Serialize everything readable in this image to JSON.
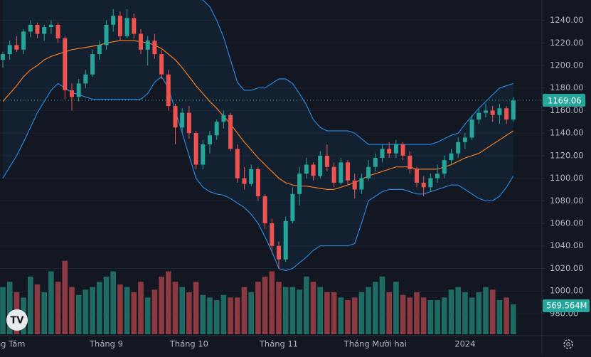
{
  "chart_data": {
    "type": "candlestick",
    "up_color": "#26a69a",
    "down_color": "#ef5350",
    "volume_up_color": "#1e6b63",
    "volume_down_color": "#8c3a42",
    "band_color": "#2a84d8",
    "middle_color": "#f57c20",
    "ylim": [
      965,
      1258
    ],
    "yticks": [
      {
        "value": 980,
        "label": "980.00"
      },
      {
        "value": 1000,
        "label": "1000.00"
      },
      {
        "value": 1020,
        "label": "1020.00"
      },
      {
        "value": 1040,
        "label": "1040.00"
      },
      {
        "value": 1060,
        "label": "1060.00"
      },
      {
        "value": 1080,
        "label": "1080.00"
      },
      {
        "value": 1100,
        "label": "1100.00"
      },
      {
        "value": 1120,
        "label": "1120.00"
      },
      {
        "value": 1140,
        "label": "1140.00"
      },
      {
        "value": 1160,
        "label": "1160.00"
      },
      {
        "value": 1180,
        "label": "1180.00"
      },
      {
        "value": 1200,
        "label": "1200.00"
      },
      {
        "value": 1220,
        "label": "1220.00"
      },
      {
        "value": 1240,
        "label": "1240.00"
      }
    ],
    "xlabels": [
      {
        "index": 0,
        "label": "Tháng Tám"
      },
      {
        "index": 15,
        "label": "Tháng 9"
      },
      {
        "index": 27,
        "label": "Tháng 10"
      },
      {
        "index": 40,
        "label": "Tháng 11"
      },
      {
        "index": 54,
        "label": "Tháng Mười hai"
      },
      {
        "index": 67,
        "label": "2024"
      }
    ],
    "last_price": 1169.06,
    "last_volume": {
      "value": 569.564,
      "label": "569.564M"
    },
    "vlim": [
      0,
      1600
    ],
    "candles": [
      [
        1205,
        1212,
        1198,
        1210
      ],
      [
        1210,
        1222,
        1205,
        1218
      ],
      [
        1218,
        1226,
        1212,
        1214
      ],
      [
        1214,
        1232,
        1210,
        1230
      ],
      [
        1230,
        1240,
        1225,
        1236
      ],
      [
        1236,
        1238,
        1224,
        1228
      ],
      [
        1228,
        1236,
        1222,
        1234
      ],
      [
        1234,
        1240,
        1228,
        1236
      ],
      [
        1236,
        1238,
        1220,
        1224
      ],
      [
        1224,
        1226,
        1170,
        1178
      ],
      [
        1178,
        1184,
        1160,
        1172
      ],
      [
        1172,
        1188,
        1168,
        1184
      ],
      [
        1184,
        1196,
        1180,
        1192
      ],
      [
        1192,
        1214,
        1190,
        1210
      ],
      [
        1210,
        1222,
        1205,
        1218
      ],
      [
        1218,
        1240,
        1214,
        1236
      ],
      [
        1236,
        1250,
        1230,
        1244
      ],
      [
        1244,
        1248,
        1222,
        1226
      ],
      [
        1226,
        1250,
        1224,
        1242
      ],
      [
        1242,
        1246,
        1224,
        1228
      ],
      [
        1228,
        1232,
        1210,
        1214
      ],
      [
        1214,
        1226,
        1200,
        1222
      ],
      [
        1222,
        1228,
        1206,
        1210
      ],
      [
        1210,
        1214,
        1188,
        1192
      ],
      [
        1192,
        1196,
        1160,
        1164
      ],
      [
        1164,
        1166,
        1130,
        1145
      ],
      [
        1145,
        1162,
        1140,
        1158
      ],
      [
        1158,
        1164,
        1135,
        1140
      ],
      [
        1140,
        1142,
        1108,
        1112
      ],
      [
        1112,
        1134,
        1108,
        1130
      ],
      [
        1130,
        1142,
        1122,
        1138
      ],
      [
        1138,
        1152,
        1134,
        1150
      ],
      [
        1150,
        1160,
        1144,
        1156
      ],
      [
        1156,
        1158,
        1124,
        1126
      ],
      [
        1126,
        1130,
        1096,
        1100
      ],
      [
        1100,
        1110,
        1090,
        1095
      ],
      [
        1095,
        1112,
        1093,
        1108
      ],
      [
        1108,
        1110,
        1080,
        1084
      ],
      [
        1084,
        1086,
        1055,
        1060
      ],
      [
        1060,
        1064,
        1034,
        1040
      ],
      [
        1040,
        1044,
        1020,
        1028
      ],
      [
        1028,
        1066,
        1026,
        1062
      ],
      [
        1062,
        1092,
        1060,
        1086
      ],
      [
        1086,
        1110,
        1076,
        1104
      ],
      [
        1104,
        1118,
        1100,
        1112
      ],
      [
        1112,
        1114,
        1098,
        1102
      ],
      [
        1102,
        1124,
        1100,
        1120
      ],
      [
        1120,
        1130,
        1106,
        1110
      ],
      [
        1110,
        1114,
        1092,
        1096
      ],
      [
        1096,
        1118,
        1094,
        1114
      ],
      [
        1114,
        1116,
        1094,
        1098
      ],
      [
        1098,
        1104,
        1082,
        1090
      ],
      [
        1090,
        1104,
        1086,
        1100
      ],
      [
        1100,
        1116,
        1098,
        1110
      ],
      [
        1110,
        1122,
        1106,
        1118
      ],
      [
        1118,
        1130,
        1114,
        1126
      ],
      [
        1126,
        1132,
        1118,
        1122
      ],
      [
        1122,
        1134,
        1118,
        1130
      ],
      [
        1130,
        1132,
        1116,
        1120
      ],
      [
        1120,
        1124,
        1104,
        1108
      ],
      [
        1108,
        1110,
        1092,
        1096
      ],
      [
        1096,
        1102,
        1084,
        1092
      ],
      [
        1092,
        1104,
        1088,
        1100
      ],
      [
        1100,
        1112,
        1096,
        1104
      ],
      [
        1104,
        1120,
        1100,
        1116
      ],
      [
        1116,
        1126,
        1112,
        1122
      ],
      [
        1122,
        1136,
        1118,
        1132
      ],
      [
        1132,
        1140,
        1126,
        1136
      ],
      [
        1136,
        1156,
        1134,
        1152
      ],
      [
        1152,
        1162,
        1148,
        1158
      ],
      [
        1158,
        1166,
        1154,
        1160
      ],
      [
        1160,
        1164,
        1150,
        1156
      ],
      [
        1156,
        1166,
        1148,
        1162
      ],
      [
        1162,
        1164,
        1148,
        1152
      ],
      [
        1152,
        1172,
        1150,
        1169.06
      ]
    ],
    "volume": [
      900,
      1000,
      800,
      700,
      1100,
      950,
      800,
      1200,
      1000,
      1400,
      900,
      750,
      850,
      900,
      1000,
      1100,
      1200,
      950,
      900,
      800,
      1000,
      700,
      850,
      1100,
      1200,
      1000,
      900,
      800,
      1000,
      750,
      700,
      650,
      750,
      700,
      700,
      900,
      800,
      1000,
      1100,
      1200,
      1000,
      900,
      900,
      850,
      1100,
      1000,
      900,
      800,
      800,
      700,
      650,
      700,
      800,
      900,
      1000,
      1100,
      800,
      1000,
      750,
      700,
      800,
      700,
      650,
      650,
      700,
      850,
      900,
      800,
      700,
      800,
      900,
      850,
      650,
      700,
      569.564
    ],
    "bands": {
      "upper": [
        1262,
        1266,
        1270,
        1272,
        1272,
        1270,
        1268,
        1265,
        1262,
        1260,
        1262,
        1262,
        1262,
        1264,
        1266,
        1268,
        1270,
        1272,
        1273,
        1274,
        1274,
        1273,
        1272,
        1270,
        1268,
        1266,
        1264,
        1262,
        1260,
        1258,
        1252,
        1240,
        1225,
        1205,
        1185,
        1178,
        1178,
        1180,
        1180,
        1184,
        1188,
        1188,
        1184,
        1175,
        1165,
        1152,
        1145,
        1142,
        1142,
        1142,
        1142,
        1140,
        1135,
        1130,
        1130,
        1130,
        1130,
        1130,
        1130,
        1130,
        1130,
        1130,
        1130,
        1132,
        1135,
        1138,
        1140,
        1148,
        1155,
        1162,
        1168,
        1174,
        1180,
        1182,
        1184
      ],
      "middle": [
        1168,
        1175,
        1182,
        1190,
        1196,
        1200,
        1205,
        1208,
        1210,
        1212,
        1214,
        1215,
        1216,
        1217,
        1218,
        1220,
        1221,
        1222,
        1222,
        1222,
        1221,
        1220,
        1218,
        1215,
        1210,
        1205,
        1198,
        1190,
        1182,
        1175,
        1168,
        1162,
        1155,
        1148,
        1140,
        1132,
        1125,
        1118,
        1112,
        1106,
        1100,
        1096,
        1094,
        1093,
        1093,
        1092,
        1091,
        1090,
        1090,
        1092,
        1094,
        1096,
        1099,
        1102,
        1104,
        1106,
        1108,
        1110,
        1110,
        1110,
        1108,
        1108,
        1108,
        1108,
        1110,
        1112,
        1115,
        1118,
        1120,
        1122,
        1126,
        1130,
        1134,
        1138,
        1142
      ],
      "lower": [
        1100,
        1110,
        1120,
        1132,
        1145,
        1158,
        1168,
        1178,
        1184,
        1180,
        1176,
        1174,
        1172,
        1170,
        1170,
        1170,
        1170,
        1170,
        1170,
        1170,
        1170,
        1175,
        1185,
        1190,
        1180,
        1160,
        1140,
        1120,
        1100,
        1092,
        1088,
        1086,
        1085,
        1082,
        1078,
        1074,
        1068,
        1060,
        1048,
        1035,
        1020,
        1018,
        1020,
        1025,
        1030,
        1036,
        1040,
        1040,
        1040,
        1040,
        1040,
        1042,
        1060,
        1080,
        1084,
        1088,
        1090,
        1090,
        1090,
        1088,
        1086,
        1086,
        1088,
        1090,
        1092,
        1094,
        1094,
        1090,
        1086,
        1082,
        1080,
        1080,
        1084,
        1092,
        1102
      ]
    }
  }
}
